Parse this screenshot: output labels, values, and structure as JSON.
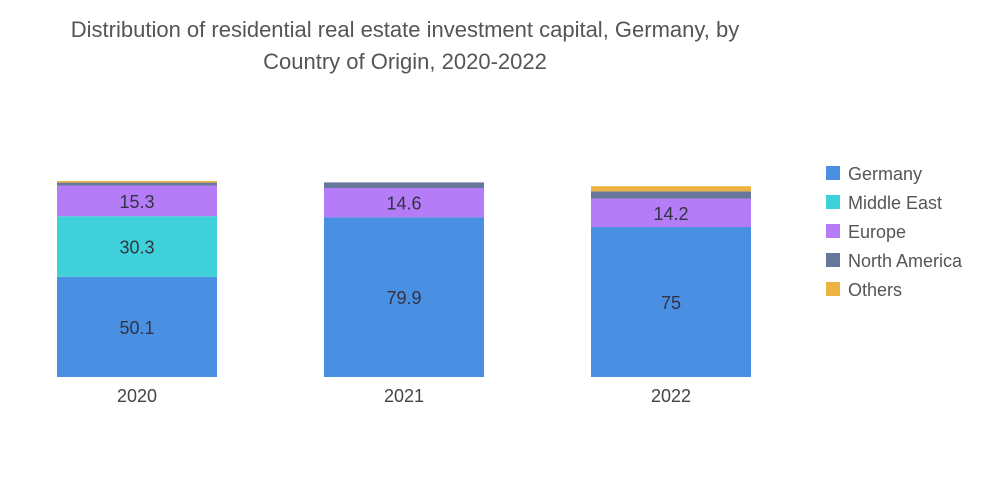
{
  "chart_data": {
    "type": "bar",
    "stacked": true,
    "title_line1": "Distribution of residential real estate investment capital, Germany, by",
    "title_line2": "Country of Origin, 2020-2022",
    "xlabel": "",
    "ylabel": "",
    "ylim": [
      0,
      100
    ],
    "grid": false,
    "legend_position": "right",
    "categories": [
      "2020",
      "2021",
      "2022"
    ],
    "series": [
      {
        "name": "Germany",
        "color": "#4a90e2",
        "values": [
          50.1,
          79.9,
          75
        ],
        "labels": [
          "50.1",
          "79.9",
          "75"
        ]
      },
      {
        "name": "Middle East",
        "color": "#3ed1da",
        "values": [
          30.3,
          0,
          0
        ],
        "labels": [
          "30.3",
          "",
          ""
        ]
      },
      {
        "name": "Europe",
        "color": "#b57cf7",
        "values": [
          15.3,
          14.6,
          14.2
        ],
        "labels": [
          "15.3",
          "14.6",
          "14.2"
        ]
      },
      {
        "name": "North America",
        "color": "#66779c",
        "values": [
          1.5,
          2.8,
          3.6
        ],
        "labels": [
          "",
          "",
          ""
        ]
      },
      {
        "name": "Others",
        "color": "#eeb443",
        "values": [
          0.8,
          0,
          2.6
        ],
        "labels": [
          "",
          "",
          ""
        ]
      }
    ]
  }
}
